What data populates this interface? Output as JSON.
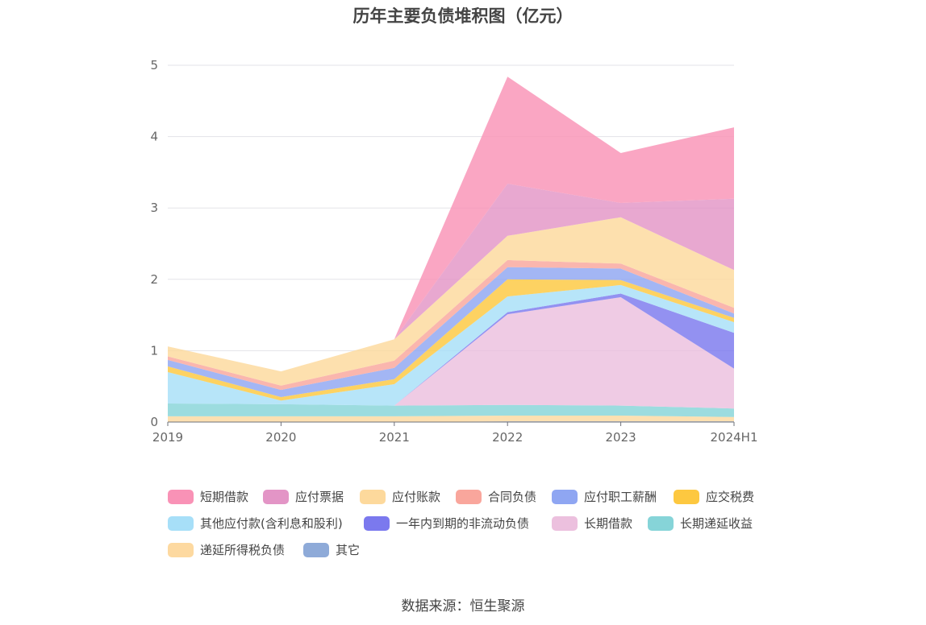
{
  "chart_data": {
    "type": "area",
    "stacked": true,
    "title": "历年主要负债堆积图（亿元）",
    "x": [
      "2019",
      "2020",
      "2021",
      "2022",
      "2023",
      "2024H1"
    ],
    "ylim": [
      0,
      5
    ],
    "yticks": [
      0,
      1,
      2,
      3,
      4,
      5
    ],
    "grid": true,
    "legend_position": "bottom",
    "series": [
      {
        "name": "其它",
        "color": "#8eaad8",
        "values": [
          0,
          0,
          0,
          0.01,
          0.01,
          0.01
        ]
      },
      {
        "name": "递延所得税负债",
        "color": "#fdd9a0",
        "values": [
          0.08,
          0.08,
          0.08,
          0.08,
          0.08,
          0.06
        ]
      },
      {
        "name": "长期递延收益",
        "color": "#86d4d8",
        "values": [
          0.18,
          0.17,
          0.15,
          0.15,
          0.14,
          0.12
        ]
      },
      {
        "name": "长期借款",
        "color": "#ecc0de",
        "values": [
          0,
          0,
          0,
          1.27,
          1.52,
          0.56
        ]
      },
      {
        "name": "一年内到期的非流动负债",
        "color": "#7b79ee",
        "values": [
          0,
          0,
          0,
          0.03,
          0.05,
          0.5
        ]
      },
      {
        "name": "其他应付款(含利息和股利)",
        "color": "#a7dff8",
        "values": [
          0.44,
          0.05,
          0.3,
          0.22,
          0.12,
          0.15
        ]
      },
      {
        "name": "应交税费",
        "color": "#fdc840",
        "values": [
          0.08,
          0.05,
          0.07,
          0.24,
          0.07,
          0.06
        ]
      },
      {
        "name": "应付职工薪酬",
        "color": "#8fa6f2",
        "values": [
          0.09,
          0.1,
          0.16,
          0.17,
          0.16,
          0.06
        ]
      },
      {
        "name": "合同负债",
        "color": "#f9a69c",
        "values": [
          0.05,
          0.06,
          0.1,
          0.1,
          0.07,
          0.08
        ]
      },
      {
        "name": "应付账款",
        "color": "#fdd99c",
        "values": [
          0.14,
          0.2,
          0.3,
          0.34,
          0.65,
          0.53
        ]
      },
      {
        "name": "应付票据",
        "color": "#e395c6",
        "values": [
          0,
          0,
          0,
          0.73,
          0.2,
          1.0
        ]
      },
      {
        "name": "短期借款",
        "color": "#f992b6",
        "values": [
          0,
          0,
          0,
          1.5,
          0.7,
          1.0
        ]
      }
    ]
  },
  "legend": [
    {
      "label": "短期借款",
      "color": "#f992b6"
    },
    {
      "label": "应付票据",
      "color": "#e395c6"
    },
    {
      "label": "应付账款",
      "color": "#fdd99c"
    },
    {
      "label": "合同负债",
      "color": "#f9a69c"
    },
    {
      "label": "应付职工薪酬",
      "color": "#8fa6f2"
    },
    {
      "label": "应交税费",
      "color": "#fdc840"
    },
    {
      "label": "其他应付款(含利息和股利)",
      "color": "#a7dff8"
    },
    {
      "label": "一年内到期的非流动负债",
      "color": "#7b79ee"
    },
    {
      "label": "长期借款",
      "color": "#ecc0de"
    },
    {
      "label": "长期递延收益",
      "color": "#86d4d8"
    },
    {
      "label": "递延所得税负债",
      "color": "#fdd9a0"
    },
    {
      "label": "其它",
      "color": "#8eaad8"
    }
  ],
  "source": "数据来源：恒生聚源"
}
